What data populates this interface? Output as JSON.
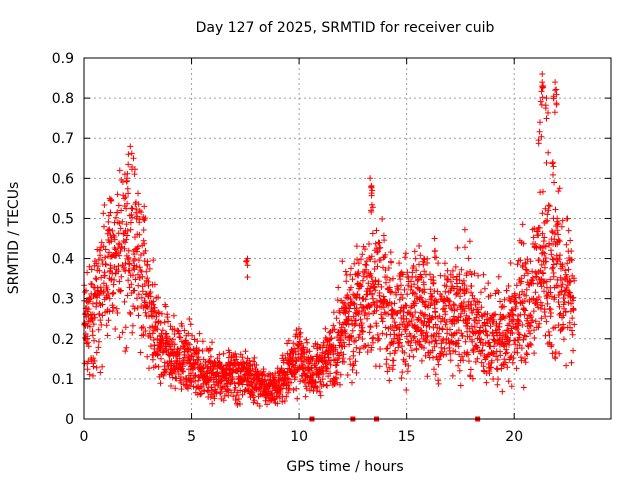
{
  "chart_data": {
    "type": "scatter",
    "title": "Day 127 of 2025, SRMTID for receiver cuib",
    "xlabel": "GPS time / hours",
    "ylabel": "SRMTID / TECUs",
    "xlim": [
      0,
      24.5
    ],
    "ylim": [
      0,
      0.9
    ],
    "xticks": [
      0,
      5,
      10,
      15,
      20
    ],
    "yticks": [
      0,
      0.1,
      0.2,
      0.3,
      0.4,
      0.5,
      0.6,
      0.7,
      0.8,
      0.9
    ],
    "grid": true,
    "marker": "+",
    "color": "#ff0000",
    "trend_anchors": [
      {
        "x": 0.0,
        "y": 0.24
      },
      {
        "x": 0.4,
        "y": 0.26
      },
      {
        "x": 0.8,
        "y": 0.32
      },
      {
        "x": 1.2,
        "y": 0.36
      },
      {
        "x": 1.6,
        "y": 0.38
      },
      {
        "x": 2.0,
        "y": 0.42
      },
      {
        "x": 2.3,
        "y": 0.4
      },
      {
        "x": 2.7,
        "y": 0.35
      },
      {
        "x": 3.1,
        "y": 0.27
      },
      {
        "x": 3.5,
        "y": 0.19
      },
      {
        "x": 4.0,
        "y": 0.16
      },
      {
        "x": 4.5,
        "y": 0.15
      },
      {
        "x": 5.0,
        "y": 0.14
      },
      {
        "x": 5.5,
        "y": 0.13
      },
      {
        "x": 6.0,
        "y": 0.11
      },
      {
        "x": 6.5,
        "y": 0.11
      },
      {
        "x": 7.0,
        "y": 0.12
      },
      {
        "x": 7.5,
        "y": 0.11
      },
      {
        "x": 8.0,
        "y": 0.09
      },
      {
        "x": 8.5,
        "y": 0.075
      },
      {
        "x": 9.0,
        "y": 0.08
      },
      {
        "x": 9.5,
        "y": 0.12
      },
      {
        "x": 10.0,
        "y": 0.16
      },
      {
        "x": 10.5,
        "y": 0.11
      },
      {
        "x": 11.0,
        "y": 0.13
      },
      {
        "x": 11.5,
        "y": 0.16
      },
      {
        "x": 12.0,
        "y": 0.22
      },
      {
        "x": 12.5,
        "y": 0.26
      },
      {
        "x": 13.0,
        "y": 0.29
      },
      {
        "x": 13.5,
        "y": 0.31
      },
      {
        "x": 14.0,
        "y": 0.28
      },
      {
        "x": 14.5,
        "y": 0.24
      },
      {
        "x": 15.0,
        "y": 0.26
      },
      {
        "x": 15.5,
        "y": 0.28
      },
      {
        "x": 16.0,
        "y": 0.27
      },
      {
        "x": 16.5,
        "y": 0.24
      },
      {
        "x": 17.0,
        "y": 0.25
      },
      {
        "x": 17.5,
        "y": 0.27
      },
      {
        "x": 18.0,
        "y": 0.26
      },
      {
        "x": 18.5,
        "y": 0.22
      },
      {
        "x": 19.0,
        "y": 0.2
      },
      {
        "x": 19.5,
        "y": 0.22
      },
      {
        "x": 20.0,
        "y": 0.25
      },
      {
        "x": 20.5,
        "y": 0.28
      },
      {
        "x": 21.0,
        "y": 0.34
      },
      {
        "x": 21.5,
        "y": 0.4
      },
      {
        "x": 22.0,
        "y": 0.38
      },
      {
        "x": 22.5,
        "y": 0.33
      },
      {
        "x": 22.8,
        "y": 0.29
      }
    ],
    "peaks": [
      {
        "x": 1.2,
        "y": 0.55
      },
      {
        "x": 2.0,
        "y": 0.6
      },
      {
        "x": 2.3,
        "y": 0.65
      },
      {
        "x": 2.8,
        "y": 0.53
      },
      {
        "x": 7.6,
        "y": 0.4
      },
      {
        "x": 12.7,
        "y": 0.36
      },
      {
        "x": 13.3,
        "y": 0.6
      },
      {
        "x": 13.4,
        "y": 0.57
      },
      {
        "x": 13.6,
        "y": 0.47
      },
      {
        "x": 15.8,
        "y": 0.4
      },
      {
        "x": 16.3,
        "y": 0.45
      },
      {
        "x": 21.2,
        "y": 0.74
      },
      {
        "x": 21.3,
        "y": 0.86
      },
      {
        "x": 21.3,
        "y": 0.84
      },
      {
        "x": 21.5,
        "y": 0.8
      },
      {
        "x": 21.8,
        "y": 0.64
      },
      {
        "x": 21.9,
        "y": 0.84
      },
      {
        "x": 21.9,
        "y": 0.82
      },
      {
        "x": 22.0,
        "y": 0.5
      }
    ],
    "zero_points": [
      10.6,
      12.5,
      13.6,
      18.3
    ]
  }
}
